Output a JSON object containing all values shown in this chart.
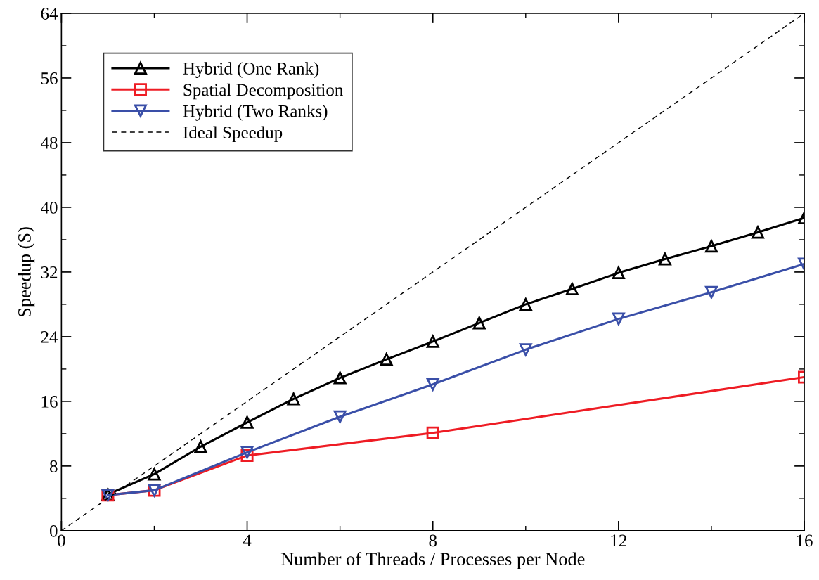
{
  "chart_data": {
    "type": "line",
    "xlabel": "Number of Threads / Processes per Node",
    "ylabel": "Speedup (S)",
    "xlim": [
      0,
      16
    ],
    "xticks": [
      0,
      4,
      8,
      12,
      16
    ],
    "ylim": [
      0,
      64
    ],
    "yticks": [
      0,
      8,
      16,
      24,
      32,
      40,
      48,
      56,
      64
    ],
    "grid": false,
    "legend": "top left",
    "series": [
      {
        "name": "Hybrid (One Rank)",
        "color": "#000000",
        "marker": "triangle",
        "line_style": "solid",
        "x": [
          1,
          2,
          3,
          4,
          5,
          6,
          7,
          8,
          9,
          10,
          11,
          12,
          13,
          14,
          15,
          16
        ],
        "values": [
          4.5,
          7.0,
          10.4,
          13.4,
          16.3,
          18.9,
          21.2,
          23.4,
          25.7,
          28.0,
          29.9,
          31.9,
          33.6,
          35.2,
          36.9,
          38.7
        ]
      },
      {
        "name": "Spatial Decomposition",
        "color": "#ee1c24",
        "marker": "square",
        "line_style": "solid",
        "x": [
          1,
          2,
          4,
          8,
          16
        ],
        "values": [
          4.4,
          5.0,
          9.3,
          12.1,
          19.0
        ]
      },
      {
        "name": "Hybrid (Two Ranks)",
        "color": "#3a4fa8",
        "marker": "triangle_down",
        "line_style": "solid",
        "x": [
          1,
          2,
          4,
          6,
          8,
          10,
          12,
          14,
          16
        ],
        "values": [
          4.4,
          5.0,
          9.7,
          14.1,
          18.1,
          22.4,
          26.2,
          29.5,
          33.0
        ]
      },
      {
        "name": "Ideal Speedup",
        "color": "#000000",
        "marker": "none",
        "line_style": "dashed",
        "x": [
          0,
          16
        ],
        "values": [
          0,
          64
        ]
      }
    ]
  }
}
